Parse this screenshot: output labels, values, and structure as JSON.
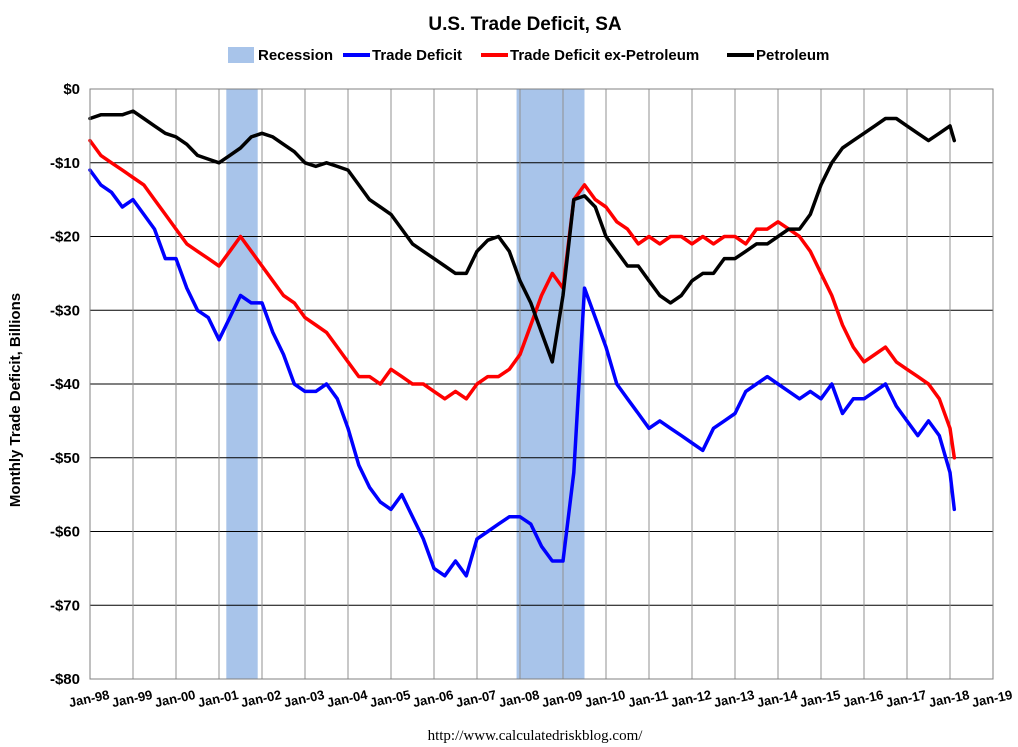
{
  "chart_data": {
    "type": "line",
    "title": "U.S. Trade Deficit, SA",
    "xlabel": "",
    "ylabel": "Monthly Trade Deficit, Billions",
    "source": "http://www.calculatedriskblog.com/",
    "ylim": [
      -80,
      0
    ],
    "y_ticks": [
      {
        "value": 0,
        "label": "$0"
      },
      {
        "value": -10,
        "label": "-$10"
      },
      {
        "value": -20,
        "label": "-$20"
      },
      {
        "value": -30,
        "label": "-$30"
      },
      {
        "value": -40,
        "label": "-$40"
      },
      {
        "value": -50,
        "label": "-$50"
      },
      {
        "value": -60,
        "label": "-$60"
      },
      {
        "value": -70,
        "label": "-$70"
      },
      {
        "value": -80,
        "label": "-$80"
      }
    ],
    "x_ticks": [
      "Jan-98",
      "Jan-99",
      "Jan-00",
      "Jan-01",
      "Jan-02",
      "Jan-03",
      "Jan-04",
      "Jan-05",
      "Jan-06",
      "Jan-07",
      "Jan-08",
      "Jan-09",
      "Jan-10",
      "Jan-11",
      "Jan-12",
      "Jan-13",
      "Jan-14",
      "Jan-15",
      "Jan-16",
      "Jan-17",
      "Jan-18",
      "Jan-19"
    ],
    "xlim": [
      1998.0,
      2019.0
    ],
    "grid": true,
    "legend": [
      {
        "name": "Recession",
        "color": "#a8c4ea",
        "kind": "area"
      },
      {
        "name": "Trade Deficit",
        "color": "#0000ff",
        "kind": "line"
      },
      {
        "name": "Trade Deficit ex-Petroleum",
        "color": "#ff0000",
        "kind": "line"
      },
      {
        "name": "Petroleum",
        "color": "#000000",
        "kind": "line"
      }
    ],
    "legend_position": "top",
    "recessions": [
      {
        "start": 2001.17,
        "end": 2001.9
      },
      {
        "start": 2007.92,
        "end": 2009.5
      }
    ],
    "series": [
      {
        "name": "Trade Deficit",
        "color": "#0000ff",
        "x": [
          1998.0,
          1998.25,
          1998.5,
          1998.75,
          1999.0,
          1999.25,
          1999.5,
          1999.75,
          2000.0,
          2000.25,
          2000.5,
          2000.75,
          2001.0,
          2001.25,
          2001.5,
          2001.75,
          2002.0,
          2002.25,
          2002.5,
          2002.75,
          2003.0,
          2003.25,
          2003.5,
          2003.75,
          2004.0,
          2004.25,
          2004.5,
          2004.75,
          2005.0,
          2005.25,
          2005.5,
          2005.75,
          2006.0,
          2006.25,
          2006.5,
          2006.75,
          2007.0,
          2007.25,
          2007.5,
          2007.75,
          2008.0,
          2008.25,
          2008.5,
          2008.75,
          2009.0,
          2009.25,
          2009.5,
          2009.75,
          2010.0,
          2010.25,
          2010.5,
          2010.75,
          2011.0,
          2011.25,
          2011.5,
          2011.75,
          2012.0,
          2012.25,
          2012.5,
          2012.75,
          2013.0,
          2013.25,
          2013.5,
          2013.75,
          2014.0,
          2014.25,
          2014.5,
          2014.75,
          2015.0,
          2015.25,
          2015.5,
          2015.75,
          2016.0,
          2016.25,
          2016.5,
          2016.75,
          2017.0,
          2017.25,
          2017.5,
          2017.75,
          2018.0,
          2018.1
        ],
        "values": [
          -11,
          -13,
          -14,
          -16,
          -15,
          -17,
          -19,
          -23,
          -23,
          -27,
          -30,
          -31,
          -34,
          -31,
          -28,
          -29,
          -29,
          -33,
          -36,
          -40,
          -41,
          -41,
          -40,
          -42,
          -46,
          -51,
          -54,
          -56,
          -57,
          -55,
          -58,
          -61,
          -65,
          -66,
          -64,
          -66,
          -61,
          -60,
          -59,
          -58,
          -58,
          -59,
          -62,
          -64,
          -64,
          -52,
          -27,
          -31,
          -35,
          -40,
          -42,
          -44,
          -46,
          -45,
          -46,
          -47,
          -48,
          -49,
          -46,
          -45,
          -44,
          -41,
          -40,
          -39,
          -40,
          -41,
          -42,
          -41,
          -42,
          -40,
          -44,
          -42,
          -42,
          -41,
          -40,
          -43,
          -45,
          -47,
          -45,
          -47,
          -52,
          -57
        ]
      },
      {
        "name": "Trade Deficit ex-Petroleum",
        "color": "#ff0000",
        "x": [
          1998.0,
          1998.25,
          1998.5,
          1998.75,
          1999.0,
          1999.25,
          1999.5,
          1999.75,
          2000.0,
          2000.25,
          2000.5,
          2000.75,
          2001.0,
          2001.25,
          2001.5,
          2001.75,
          2002.0,
          2002.25,
          2002.5,
          2002.75,
          2003.0,
          2003.25,
          2003.5,
          2003.75,
          2004.0,
          2004.25,
          2004.5,
          2004.75,
          2005.0,
          2005.25,
          2005.5,
          2005.75,
          2006.0,
          2006.25,
          2006.5,
          2006.75,
          2007.0,
          2007.25,
          2007.5,
          2007.75,
          2008.0,
          2008.25,
          2008.5,
          2008.75,
          2009.0,
          2009.25,
          2009.5,
          2009.75,
          2010.0,
          2010.25,
          2010.5,
          2010.75,
          2011.0,
          2011.25,
          2011.5,
          2011.75,
          2012.0,
          2012.25,
          2012.5,
          2012.75,
          2013.0,
          2013.25,
          2013.5,
          2013.75,
          2014.0,
          2014.25,
          2014.5,
          2014.75,
          2015.0,
          2015.25,
          2015.5,
          2015.75,
          2016.0,
          2016.25,
          2016.5,
          2016.75,
          2017.0,
          2017.25,
          2017.5,
          2017.75,
          2018.0,
          2018.1
        ],
        "values": [
          -7,
          -9,
          -10,
          -11,
          -12,
          -13,
          -15,
          -17,
          -19,
          -21,
          -22,
          -23,
          -24,
          -22,
          -20,
          -22,
          -24,
          -26,
          -28,
          -29,
          -31,
          -32,
          -33,
          -35,
          -37,
          -39,
          -39,
          -40,
          -38,
          -39,
          -40,
          -40,
          -41,
          -42,
          -41,
          -42,
          -40,
          -39,
          -39,
          -38,
          -36,
          -32,
          -28,
          -25,
          -27,
          -15,
          -13,
          -15,
          -16,
          -18,
          -19,
          -21,
          -20,
          -21,
          -20,
          -20,
          -21,
          -20,
          -21,
          -20,
          -20,
          -21,
          -19,
          -19,
          -18,
          -19,
          -20,
          -22,
          -25,
          -28,
          -32,
          -35,
          -37,
          -36,
          -35,
          -37,
          -38,
          -39,
          -40,
          -42,
          -46,
          -50
        ]
      },
      {
        "name": "Petroleum",
        "color": "#000000",
        "x": [
          1998.0,
          1998.25,
          1998.5,
          1998.75,
          1999.0,
          1999.25,
          1999.5,
          1999.75,
          2000.0,
          2000.25,
          2000.5,
          2000.75,
          2001.0,
          2001.25,
          2001.5,
          2001.75,
          2002.0,
          2002.25,
          2002.5,
          2002.75,
          2003.0,
          2003.25,
          2003.5,
          2003.75,
          2004.0,
          2004.25,
          2004.5,
          2004.75,
          2005.0,
          2005.25,
          2005.5,
          2005.75,
          2006.0,
          2006.25,
          2006.5,
          2006.75,
          2007.0,
          2007.25,
          2007.5,
          2007.75,
          2008.0,
          2008.25,
          2008.5,
          2008.75,
          2009.0,
          2009.25,
          2009.5,
          2009.75,
          2010.0,
          2010.25,
          2010.5,
          2010.75,
          2011.0,
          2011.25,
          2011.5,
          2011.75,
          2012.0,
          2012.25,
          2012.5,
          2012.75,
          2013.0,
          2013.25,
          2013.5,
          2013.75,
          2014.0,
          2014.25,
          2014.5,
          2014.75,
          2015.0,
          2015.25,
          2015.5,
          2015.75,
          2016.0,
          2016.25,
          2016.5,
          2016.75,
          2017.0,
          2017.25,
          2017.5,
          2017.75,
          2018.0,
          2018.1
        ],
        "values": [
          -4,
          -3.5,
          -3.5,
          -3.5,
          -3,
          -4,
          -5,
          -6,
          -6.5,
          -7.5,
          -9,
          -9.5,
          -10,
          -9,
          -8,
          -6.5,
          -6,
          -6.5,
          -7.5,
          -8.5,
          -10,
          -10.5,
          -10,
          -10.5,
          -11,
          -13,
          -15,
          -16,
          -17,
          -19,
          -21,
          -22,
          -23,
          -24,
          -25,
          -25,
          -22,
          -20.5,
          -20,
          -22,
          -26,
          -29,
          -33,
          -37,
          -28,
          -15,
          -14.5,
          -16,
          -20,
          -22,
          -24,
          -24,
          -26,
          -28,
          -29,
          -28,
          -26,
          -25,
          -25,
          -23,
          -23,
          -22,
          -21,
          -21,
          -20,
          -19,
          -19,
          -17,
          -13,
          -10,
          -8,
          -7,
          -6,
          -5,
          -4,
          -4,
          -5,
          -6,
          -7,
          -6,
          -5,
          -7
        ]
      }
    ]
  }
}
